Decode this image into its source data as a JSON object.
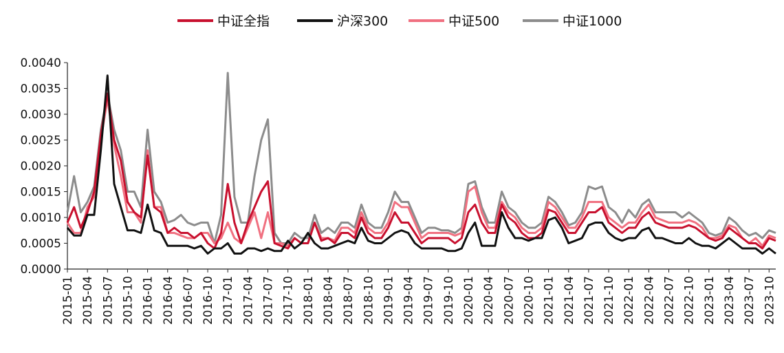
{
  "chart_data": {
    "type": "line",
    "title": "",
    "xlabel": "",
    "ylabel": "",
    "ylim": [
      0,
      0.004
    ],
    "yticks": [
      "0.0000",
      "0.0005",
      "0.0010",
      "0.0015",
      "0.0020",
      "0.0025",
      "0.0030",
      "0.0035",
      "0.0040"
    ],
    "x_start": "2015-01",
    "x_tick_labels": [
      "2015-01",
      "2015-04",
      "2015-07",
      "2015-10",
      "2016-01",
      "2016-04",
      "2016-07",
      "2016-10",
      "2017-01",
      "2017-04",
      "2017-07",
      "2017-10",
      "2018-01",
      "2018-04",
      "2018-07",
      "2018-10",
      "2019-01",
      "2019-04",
      "2019-07",
      "2019-10",
      "2020-01",
      "2020-04",
      "2020-07",
      "2020-10",
      "2021-01",
      "2021-04",
      "2021-07",
      "2021-10",
      "2022-01",
      "2022-04",
      "2022-07",
      "2022-10",
      "2023-01",
      "2023-04",
      "2023-07",
      "2023-10"
    ],
    "legend_position": "top",
    "grid": false,
    "series": [
      {
        "name": "中证1000",
        "color": "#8c8c8c",
        "values": [
          0.0011,
          0.0018,
          0.0011,
          0.0013,
          0.0016,
          0.0027,
          0.0034,
          0.0027,
          0.0023,
          0.0015,
          0.0015,
          0.0012,
          0.0027,
          0.0015,
          0.0013,
          0.0009,
          0.00095,
          0.00105,
          0.0009,
          0.00085,
          0.0009,
          0.0009,
          0.0005,
          0.00105,
          0.0038,
          0.0014,
          0.0009,
          0.0009,
          0.0018,
          0.0025,
          0.0029,
          0.0007,
          0.0005,
          0.0005,
          0.0007,
          0.0006,
          0.0006,
          0.00105,
          0.0007,
          0.0008,
          0.0007,
          0.0009,
          0.0009,
          0.0008,
          0.00125,
          0.0009,
          0.0008,
          0.0008,
          0.0011,
          0.0015,
          0.0013,
          0.0013,
          0.001,
          0.0007,
          0.0008,
          0.0008,
          0.00075,
          0.00075,
          0.0007,
          0.0008,
          0.00165,
          0.0017,
          0.0012,
          0.0009,
          0.0009,
          0.0015,
          0.0012,
          0.0011,
          0.0009,
          0.0008,
          0.0008,
          0.0009,
          0.0014,
          0.0013,
          0.0011,
          0.00085,
          0.0009,
          0.0011,
          0.0016,
          0.00155,
          0.0016,
          0.0012,
          0.0011,
          0.0009,
          0.00115,
          0.001,
          0.00125,
          0.00135,
          0.0011,
          0.0011,
          0.0011,
          0.0011,
          0.001,
          0.0011,
          0.001,
          0.0009,
          0.0007,
          0.00065,
          0.0007,
          0.001,
          0.0009,
          0.00075,
          0.00065,
          0.0007,
          0.0006,
          0.00075,
          0.0007
        ]
      },
      {
        "name": "中证500",
        "color": "#f07080",
        "values": [
          0.0009,
          0.0007,
          0.0007,
          0.0012,
          0.0014,
          0.0025,
          0.0033,
          0.0024,
          0.0018,
          0.0011,
          0.0011,
          0.0009,
          0.0023,
          0.0012,
          0.0012,
          0.0007,
          0.0007,
          0.00065,
          0.0006,
          0.0006,
          0.0007,
          0.0007,
          0.0005,
          0.0006,
          0.0009,
          0.0006,
          0.0005,
          0.0008,
          0.0011,
          0.0006,
          0.0011,
          0.0005,
          0.0005,
          0.00045,
          0.0006,
          0.0005,
          0.0005,
          0.0009,
          0.0006,
          0.0006,
          0.00055,
          0.0008,
          0.0008,
          0.0007,
          0.0011,
          0.0008,
          0.0007,
          0.0007,
          0.0009,
          0.0013,
          0.0012,
          0.0012,
          0.0009,
          0.0006,
          0.0007,
          0.0007,
          0.0007,
          0.0007,
          0.00065,
          0.0007,
          0.0015,
          0.0016,
          0.0011,
          0.0008,
          0.0008,
          0.0013,
          0.0011,
          0.001,
          0.0008,
          0.0007,
          0.0007,
          0.0008,
          0.0013,
          0.0012,
          0.001,
          0.0008,
          0.0008,
          0.001,
          0.0013,
          0.0013,
          0.0013,
          0.001,
          0.0009,
          0.0008,
          0.0009,
          0.0009,
          0.0011,
          0.00125,
          0.001,
          0.00095,
          0.0009,
          0.0009,
          0.0009,
          0.00095,
          0.0009,
          0.0008,
          0.0006,
          0.0006,
          0.00065,
          0.00085,
          0.0008,
          0.0006,
          0.0005,
          0.0006,
          0.00045,
          0.00065,
          0.0006
        ]
      },
      {
        "name": "中证全指",
        "color": "#c8102e",
        "values": [
          0.0009,
          0.0012,
          0.0008,
          0.0011,
          0.0015,
          0.0026,
          0.0034,
          0.0025,
          0.0021,
          0.0013,
          0.0011,
          0.001,
          0.0022,
          0.0012,
          0.0011,
          0.0007,
          0.0008,
          0.0007,
          0.0007,
          0.0006,
          0.0007,
          0.0005,
          0.0004,
          0.0007,
          0.00165,
          0.0009,
          0.0005,
          0.0009,
          0.0012,
          0.0015,
          0.0017,
          0.0005,
          0.00045,
          0.0004,
          0.0006,
          0.0005,
          0.0005,
          0.0009,
          0.00055,
          0.0006,
          0.0005,
          0.0007,
          0.0007,
          0.0006,
          0.001,
          0.0007,
          0.0006,
          0.0006,
          0.0008,
          0.0011,
          0.0009,
          0.0009,
          0.0007,
          0.0005,
          0.0006,
          0.0006,
          0.0006,
          0.0006,
          0.0005,
          0.0006,
          0.0011,
          0.00125,
          0.0009,
          0.0007,
          0.0007,
          0.00125,
          0.001,
          0.0009,
          0.0007,
          0.0006,
          0.0006,
          0.0007,
          0.00115,
          0.0011,
          0.0009,
          0.0007,
          0.0007,
          0.0009,
          0.0011,
          0.0011,
          0.0012,
          0.0009,
          0.0008,
          0.0007,
          0.0008,
          0.0008,
          0.001,
          0.0011,
          0.0009,
          0.00085,
          0.0008,
          0.0008,
          0.0008,
          0.00085,
          0.0008,
          0.0007,
          0.0006,
          0.00055,
          0.0006,
          0.0008,
          0.0007,
          0.0006,
          0.0005,
          0.0005,
          0.0004,
          0.0006,
          0.00055
        ]
      },
      {
        "name": "沪深300",
        "color": "#111111",
        "values": [
          0.0008,
          0.00065,
          0.00065,
          0.00105,
          0.00105,
          0.0023,
          0.00375,
          0.00165,
          0.0012,
          0.00075,
          0.00075,
          0.0007,
          0.00125,
          0.00075,
          0.0007,
          0.00045,
          0.00045,
          0.00045,
          0.00045,
          0.0004,
          0.00045,
          0.0003,
          0.0004,
          0.0004,
          0.0005,
          0.0003,
          0.0003,
          0.0004,
          0.0004,
          0.00035,
          0.0004,
          0.00035,
          0.00035,
          0.00055,
          0.0004,
          0.0005,
          0.0007,
          0.0005,
          0.0004,
          0.0004,
          0.00045,
          0.0005,
          0.00055,
          0.0005,
          0.0008,
          0.00055,
          0.0005,
          0.0005,
          0.0006,
          0.0007,
          0.00075,
          0.0007,
          0.0005,
          0.0004,
          0.0004,
          0.0004,
          0.0004,
          0.00035,
          0.00035,
          0.0004,
          0.0007,
          0.0009,
          0.00045,
          0.00045,
          0.00045,
          0.0011,
          0.0008,
          0.0006,
          0.0006,
          0.00055,
          0.0006,
          0.0006,
          0.00095,
          0.001,
          0.0008,
          0.0005,
          0.00055,
          0.0006,
          0.00085,
          0.0009,
          0.0009,
          0.0007,
          0.0006,
          0.00055,
          0.0006,
          0.0006,
          0.00075,
          0.0008,
          0.0006,
          0.0006,
          0.00055,
          0.0005,
          0.0005,
          0.0006,
          0.0005,
          0.00045,
          0.00045,
          0.0004,
          0.0005,
          0.0006,
          0.0005,
          0.0004,
          0.0004,
          0.0004,
          0.0003,
          0.0004,
          0.0003
        ]
      }
    ]
  }
}
